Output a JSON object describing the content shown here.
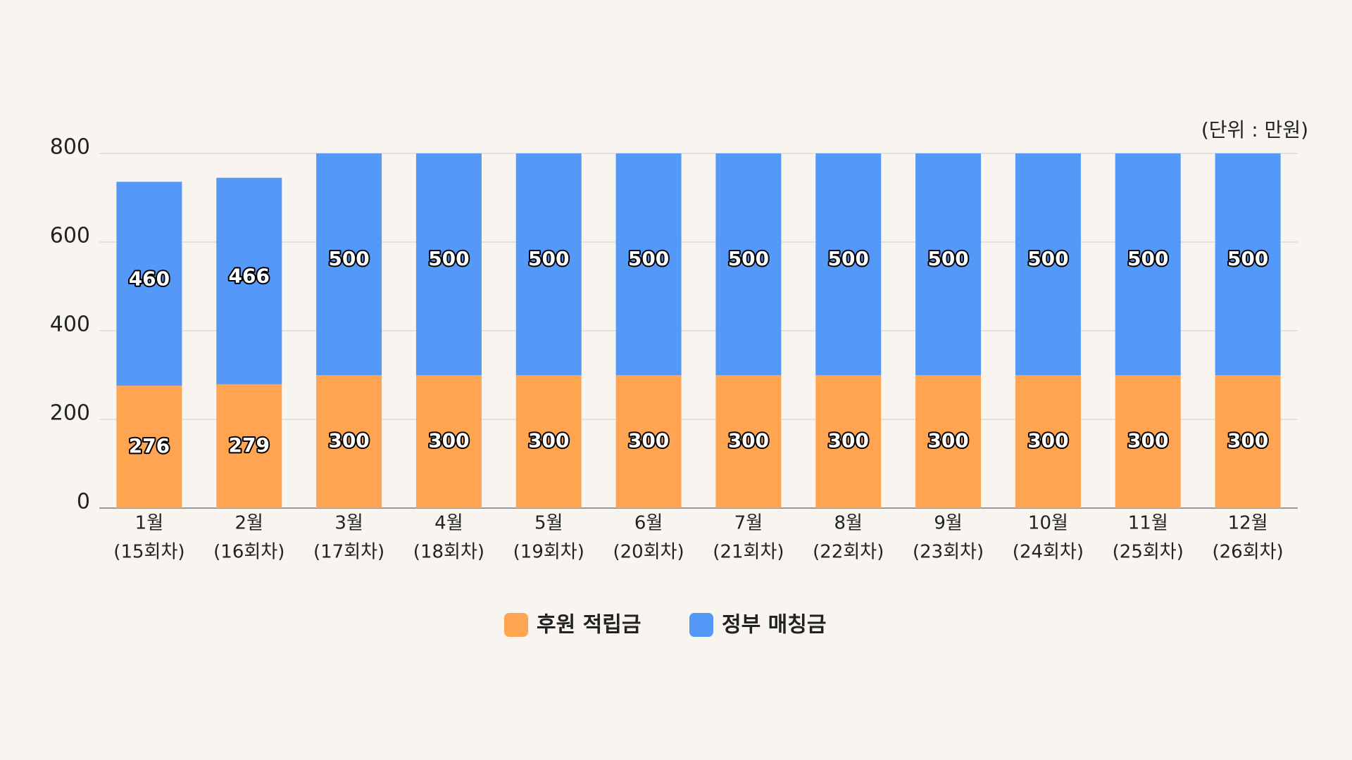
{
  "chart_data": {
    "type": "stacked_bar",
    "unit_label": "(단위 : 만원)",
    "categories": [
      [
        "1월",
        "(15회차)"
      ],
      [
        "2월",
        "(16회차)"
      ],
      [
        "3월",
        "(17회차)"
      ],
      [
        "4월",
        "(18회차)"
      ],
      [
        "5월",
        "(19회차)"
      ],
      [
        "6월",
        "(20회차)"
      ],
      [
        "7월",
        "(21회차)"
      ],
      [
        "8월",
        "(22회차)"
      ],
      [
        "9월",
        "(23회차)"
      ],
      [
        "10월",
        "(24회차)"
      ],
      [
        "11월",
        "(25회차)"
      ],
      [
        "12월",
        "(26회차)"
      ]
    ],
    "series": [
      {
        "name": "후원 적립금",
        "color": "#FFA552",
        "values": [
          276,
          279,
          300,
          300,
          300,
          300,
          300,
          300,
          300,
          300,
          300,
          300
        ]
      },
      {
        "name": "정부 매칭금",
        "color": "#5599F8",
        "values": [
          460,
          466,
          500,
          500,
          500,
          500,
          500,
          500,
          500,
          500,
          500,
          500
        ]
      }
    ],
    "ylim": [
      0,
      800
    ],
    "yticks": [
      0,
      200,
      400,
      600,
      800
    ],
    "grid": true,
    "legend": "bottom"
  }
}
